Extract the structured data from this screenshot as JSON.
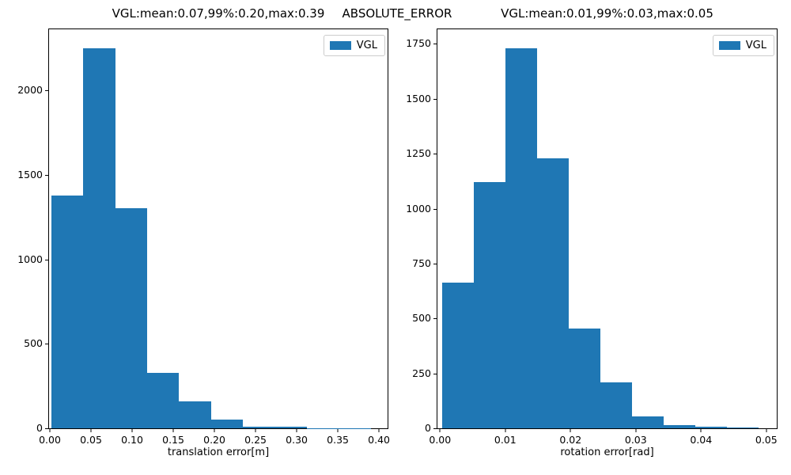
{
  "suptitle": "ABSOLUTE_ERROR",
  "figure_bg": "#ffffff",
  "text_color": "#000000",
  "chart_data": [
    {
      "type": "bar",
      "subtype": "histogram",
      "title": "VGL:mean:0.07,99%:0.20,max:0.39",
      "xlabel": "translation error[m]",
      "ylabel": "",
      "legend": {
        "label": "VGL",
        "position": "upper right",
        "swatch_color": "#1f77b4"
      },
      "bar_color": "#1f77b4",
      "grid": false,
      "bins": {
        "start": 0.0015,
        "width": 0.0389,
        "count": 10
      },
      "counts": [
        1380,
        2250,
        1305,
        330,
        160,
        50,
        8,
        8,
        2,
        1
      ],
      "xlim": [
        -0.001,
        0.4105
      ],
      "ylim": [
        0,
        2362.5
      ],
      "x_tick_values": [
        0.0,
        0.05,
        0.1,
        0.15,
        0.2,
        0.25,
        0.3,
        0.35,
        0.4
      ],
      "x_tick_labels": [
        "0.00",
        "0.05",
        "0.10",
        "0.15",
        "0.20",
        "0.25",
        "0.30",
        "0.35",
        "0.40"
      ],
      "y_tick_values": [
        0,
        500,
        1000,
        1500,
        2000
      ],
      "y_tick_labels": [
        "0",
        "500",
        "1000",
        "1500",
        "2000"
      ]
    },
    {
      "type": "bar",
      "subtype": "histogram",
      "title": "VGL:mean:0.01,99%:0.03,max:0.05",
      "xlabel": "rotation error[rad]",
      "ylabel": "",
      "legend": {
        "label": "VGL",
        "position": "upper right",
        "swatch_color": "#1f77b4"
      },
      "bar_color": "#1f77b4",
      "grid": false,
      "bins": {
        "start": 0.0003,
        "width": 0.00485,
        "count": 10
      },
      "counts": [
        665,
        1120,
        1730,
        1230,
        455,
        210,
        55,
        15,
        8,
        5
      ],
      "xlim": [
        -0.0004,
        0.0516
      ],
      "ylim": [
        0,
        1816.5
      ],
      "x_tick_values": [
        0.0,
        0.01,
        0.02,
        0.03,
        0.04,
        0.05
      ],
      "x_tick_labels": [
        "0.00",
        "0.01",
        "0.02",
        "0.03",
        "0.04",
        "0.05"
      ],
      "y_tick_values": [
        0,
        250,
        500,
        750,
        1000,
        1250,
        1500,
        1750
      ],
      "y_tick_labels": [
        "0",
        "250",
        "500",
        "750",
        "1000",
        "1250",
        "1500",
        "1750"
      ]
    }
  ]
}
